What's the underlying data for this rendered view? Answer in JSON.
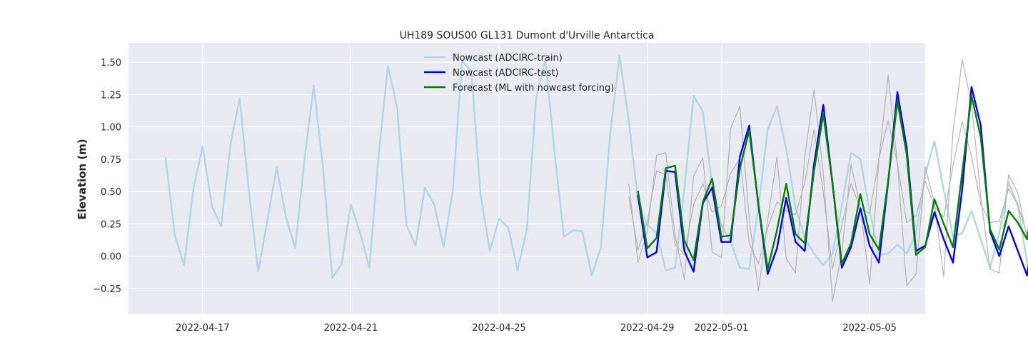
{
  "chart_data": {
    "type": "line",
    "title": "UH189 SOUS00 GL131 Dumont d'Urville Antarctica",
    "xlabel": "",
    "ylabel": "Elevation (m)",
    "x_start": "2022-04-16T00:00",
    "x_end": "2022-05-06T00:00",
    "step_hours": 6,
    "xlim": [
      "2022-04-15T00:00",
      "2022-05-06T12:00"
    ],
    "ylim": [
      -0.45,
      1.65
    ],
    "yticks": [
      -0.25,
      0.0,
      0.25,
      0.5,
      0.75,
      1.0,
      1.25,
      1.5
    ],
    "ytick_labels": [
      "−0.25",
      "0.00",
      "0.25",
      "0.50",
      "0.75",
      "1.00",
      "1.25",
      "1.50"
    ],
    "xticks": [
      "2022-04-17",
      "2022-04-21",
      "2022-04-25",
      "2022-04-29",
      "2022-05-01",
      "2022-05-05"
    ],
    "grid": true,
    "legend_position": "upper-center",
    "series": [
      {
        "name": "Nowcast (ADCIRC-train)",
        "color": "#add8e6",
        "start": "2022-04-16T00:00",
        "values": [
          0.76,
          0.16,
          -0.07,
          0.52,
          0.85,
          0.39,
          0.23,
          0.86,
          1.22,
          0.5,
          -0.12,
          0.28,
          0.69,
          0.3,
          0.06,
          0.75,
          1.32,
          0.68,
          -0.17,
          -0.06,
          0.4,
          0.18,
          -0.09,
          0.78,
          1.47,
          1.15,
          0.24,
          0.08,
          0.53,
          0.4,
          0.07,
          0.5,
          1.51,
          1.43,
          0.48,
          0.04,
          0.29,
          0.22,
          -0.11,
          0.21,
          1.22,
          1.52,
          0.8,
          0.15,
          0.2,
          0.19,
          -0.15,
          0.07,
          0.95,
          1.55,
          1.05,
          0.42,
          0.24,
          0.18,
          -0.11,
          -0.09,
          0.52,
          1.24,
          1.12,
          0.55,
          0.24,
          0.11,
          -0.09,
          -0.1,
          0.38,
          0.98,
          1.16,
          0.83,
          0.38,
          0.14,
          0.02,
          -0.07,
          0.02,
          0.39,
          0.8,
          0.75,
          0.35,
          0.01,
          0.02,
          0.09,
          0.02,
          0.17,
          0.63,
          0.89,
          0.51,
          0.15,
          0.18,
          0.35,
          0.13,
          -0.09,
          0.18,
          0.57,
          0.39,
          -0.05,
          0.06,
          0.5,
          0.35,
          -0.1,
          -0.02,
          0.5
        ]
      },
      {
        "name": "",
        "color": "#b3b3b3",
        "start": "2022-04-28T12:00",
        "values": [
          0.56,
          -0.05,
          0.19,
          0.78,
          0.8,
          0.16,
          -0.18,
          0.62,
          0.76,
          0.03,
          -0.01,
          0.99,
          1.16,
          0.29,
          -0.27,
          0.28,
          0.77,
          -0.02,
          -0.13,
          0.77,
          1.29,
          0.64,
          -0.35,
          0.03,
          0.71,
          0.38,
          -0.22,
          0.74,
          1.4,
          0.72,
          -0.23,
          -0.14,
          0.69,
          0.41,
          -0.16,
          0.96,
          1.52,
          1.18,
          0.46,
          -0.1,
          -0.13,
          0.63,
          0.49,
          0.13,
          0.93,
          1.46,
          1.37,
          0.27,
          -0.3,
          -0.03,
          0.09,
          0.84,
          1.44,
          1.39,
          0.61,
          -0.22,
          -0.07,
          0.0
        ]
      },
      {
        "name": "",
        "color": "#b3b3b3",
        "start": "2022-04-28T12:00",
        "values": [
          0.46,
          0.05,
          0.27,
          0.66,
          0.63,
          0.09,
          0.01,
          0.4,
          0.56,
          0.34,
          0.39,
          0.64,
          0.76,
          0.1,
          -0.06,
          0.22,
          0.42,
          0.35,
          0.32,
          0.57,
          0.98,
          0.49,
          -0.1,
          0.24,
          0.56,
          0.37,
          0.33,
          0.75,
          1.05,
          0.72,
          0.26,
          0.31,
          0.58,
          0.38,
          0.3,
          0.7,
          1.04,
          0.77,
          0.4,
          0.26,
          0.27,
          0.52,
          0.4,
          0.16,
          0.65,
          0.98,
          0.78,
          0.36,
          0.28,
          0.54,
          0.5,
          0.39,
          0.84,
          0.83,
          0.62,
          0.38,
          0.55,
          0.61
        ]
      },
      {
        "name": "Nowcast (ADCIRC-test)",
        "color": "#0000ff",
        "start": "2022-04-28T18:00",
        "values": [
          0.47,
          -0.01,
          0.03,
          0.66,
          0.65,
          0.04,
          -0.12,
          0.41,
          0.53,
          0.11,
          0.11,
          0.77,
          1.01,
          0.39,
          -0.14,
          0.06,
          0.45,
          0.11,
          0.04,
          0.71,
          1.17,
          0.56,
          -0.09,
          0.07,
          0.37,
          0.08,
          -0.05,
          0.57,
          1.27,
          0.84,
          0.04,
          0.08,
          0.34,
          0.13,
          -0.05,
          0.52,
          1.31,
          1.01,
          0.19,
          0.0,
          0.23,
          0.04,
          -0.15,
          0.38,
          1.19,
          1.11,
          0.31,
          0.05,
          0.18,
          0.01,
          -0.18,
          0.31,
          1.05,
          1.19,
          0.52,
          0.16,
          0.25,
          0.1
        ]
      },
      {
        "name": "Forecast (ML with nowcast forcing)",
        "color": "#008000",
        "start": "2022-04-28T18:00",
        "values": [
          0.5,
          0.06,
          0.14,
          0.68,
          0.7,
          0.12,
          -0.03,
          0.42,
          0.6,
          0.15,
          0.16,
          0.68,
          0.97,
          0.4,
          -0.1,
          0.2,
          0.56,
          0.17,
          0.1,
          0.66,
          1.1,
          0.56,
          -0.06,
          0.1,
          0.48,
          0.17,
          0.05,
          0.58,
          1.2,
          0.79,
          0.01,
          0.07,
          0.44,
          0.25,
          0.07,
          0.65,
          1.24,
          0.92,
          0.21,
          0.05,
          0.35,
          0.26,
          0.13,
          0.54,
          1.19,
          1.06,
          0.37,
          0.07,
          0.23,
          0.2,
          0.09,
          0.59,
          1.13,
          1.12,
          0.53,
          0.14,
          0.23,
          0.22
        ]
      }
    ]
  }
}
